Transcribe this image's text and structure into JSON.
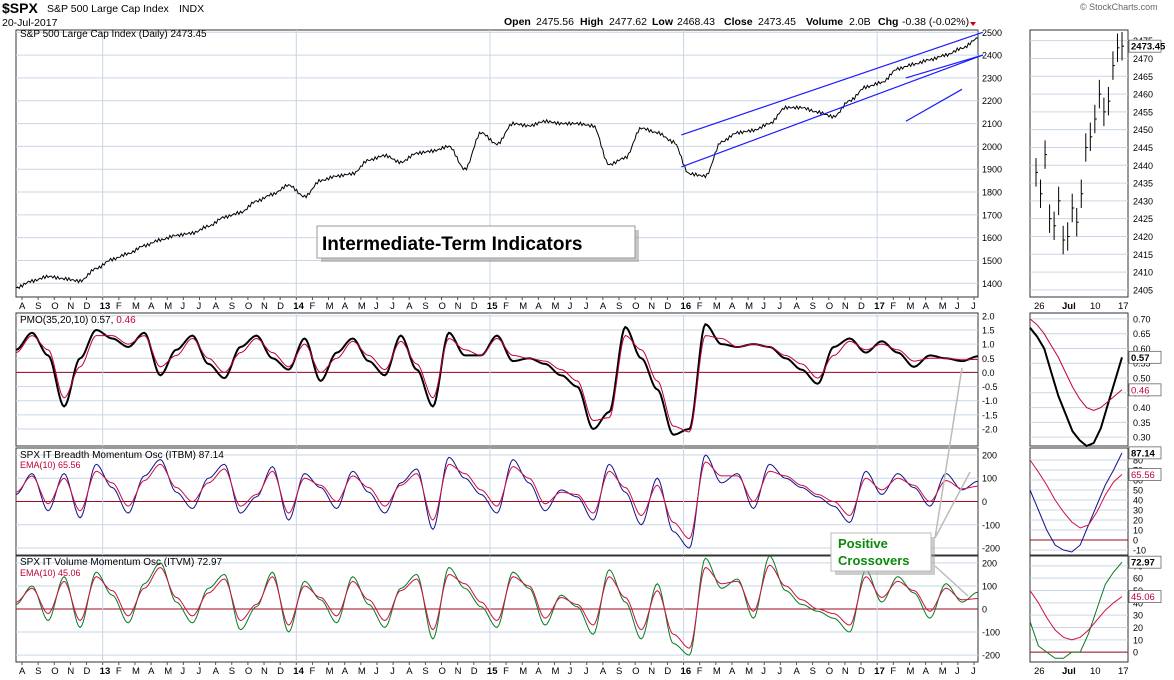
{
  "header": {
    "symbol": "$SPX",
    "name": "S&P 500 Large Cap Index",
    "exchange": "INDX",
    "date": "20-Jul-2017",
    "brand": "© StockCharts.com",
    "ohlc": {
      "open_label": "Open",
      "open": "2475.56",
      "high_label": "High",
      "high": "2477.62",
      "low_label": "Low",
      "low": "2468.43",
      "close_label": "Close",
      "close": "2473.45",
      "volume_label": "Volume",
      "volume": "2.0B",
      "chg_label": "Chg",
      "chg": "-0.38 (-0.02%)"
    }
  },
  "annotations": {
    "title_box": "Intermediate-Term Indicators",
    "crossover_line1": "Positive",
    "crossover_line2": "Crossovers"
  },
  "colors": {
    "price": "#000000",
    "channel": "#1a1aff",
    "pmo": "#000000",
    "pmo_signal": "#c0003a",
    "itbm": "#13138a",
    "itvm": "#0a7a1e",
    "ema": "#cc1144",
    "zero_line": "#9b0a1e",
    "grid": "#c9d6e6",
    "crossover_text": "#0a8a0a"
  },
  "chart_data": [
    {
      "type": "line",
      "panel": "price",
      "label": "S&P 500 Large Cap Index (Daily) 2473.45",
      "last_value": "2473.45",
      "yticks": [
        1400,
        1500,
        1600,
        1700,
        1800,
        1900,
        2000,
        2100,
        2200,
        2300,
        2400,
        2500
      ],
      "ylim": [
        1340,
        2510
      ],
      "x_tick_labels": [
        "A",
        "S",
        "O",
        "N",
        "D",
        "13",
        "F",
        "M",
        "A",
        "M",
        "J",
        "J",
        "A",
        "S",
        "O",
        "N",
        "D",
        "14",
        "F",
        "M",
        "A",
        "M",
        "J",
        "J",
        "A",
        "S",
        "O",
        "N",
        "D",
        "15",
        "F",
        "M",
        "A",
        "M",
        "J",
        "J",
        "A",
        "S",
        "O",
        "N",
        "D",
        "16",
        "F",
        "M",
        "A",
        "M",
        "J",
        "J",
        "A",
        "S",
        "O",
        "N",
        "D",
        "17",
        "F",
        "M",
        "A",
        "M",
        "J",
        "J"
      ],
      "year_labels": [
        "13",
        "14",
        "15",
        "16",
        "17"
      ],
      "series": [
        {
          "values": [
            1380,
            1410,
            1430,
            1420,
            1410,
            1465,
            1505,
            1530,
            1565,
            1590,
            1610,
            1620,
            1650,
            1690,
            1710,
            1760,
            1790,
            1830,
            1780,
            1850,
            1870,
            1880,
            1940,
            1960,
            1930,
            1970,
            1980,
            2000,
            1900,
            2060,
            2010,
            2100,
            2090,
            2110,
            2100,
            2100,
            2090,
            1920,
            1950,
            2080,
            2060,
            2020,
            1880,
            1870,
            2020,
            2060,
            2070,
            2100,
            2170,
            2170,
            2150,
            2130,
            2200,
            2260,
            2280,
            2340,
            2360,
            2380,
            2400,
            2430,
            2473
          ]
        }
      ],
      "channel_lines": [
        {
          "from": [
            "Feb-2016",
            2050
          ],
          "to": [
            "Jul-2017",
            2500
          ]
        },
        {
          "from": [
            "Feb-2016",
            1910
          ],
          "to": [
            "Jul-2017",
            2400
          ]
        },
        {
          "from": [
            "Mar-2017",
            2300
          ],
          "to": [
            "Jul-2017",
            2400
          ]
        },
        {
          "from": [
            "Mar-2017",
            2110
          ],
          "to": [
            "Jun-2017",
            2250
          ]
        }
      ]
    },
    {
      "type": "line",
      "panel": "price-inset",
      "yticks": [
        2405,
        2410,
        2415,
        2420,
        2425,
        2430,
        2435,
        2440,
        2445,
        2450,
        2455,
        2460,
        2465,
        2470,
        2475
      ],
      "ylim": [
        2403,
        2478
      ],
      "last_value": "2473.45",
      "x_tick_labels": [
        "26",
        "Jul",
        "10",
        "17"
      ],
      "series": [
        {
          "values": [
            2438,
            2432,
            2443,
            2425,
            2423,
            2430,
            2419,
            2420,
            2428,
            2424,
            2432,
            2445,
            2448,
            2453,
            2460,
            2455,
            2458,
            2468,
            2473,
            2473.45
          ]
        }
      ]
    },
    {
      "type": "line",
      "panel": "pmo",
      "label": "PMO(35,20,10) 0.57, 0.46",
      "title": "PMO(35,20,10)",
      "pmo_value": "0.57",
      "signal_value": "0.46",
      "yticks": [
        -2.0,
        -1.5,
        -1.0,
        -0.5,
        0.0,
        0.5,
        1.0,
        1.5,
        2.0
      ],
      "ylim": [
        -2.6,
        2.1
      ],
      "series": [
        {
          "values": [
            0.8,
            1.4,
            0.6,
            -1.2,
            0.5,
            1.5,
            1.2,
            0.9,
            1.4,
            -0.1,
            0.8,
            1.3,
            0.3,
            -0.2,
            0.9,
            1.3,
            0.5,
            0.1,
            1.2,
            -0.3,
            0.7,
            1.2,
            0.4,
            -0.1,
            1.3,
            0.1,
            -1.2,
            1.4,
            0.6,
            0.6,
            1.3,
            0.4,
            0.5,
            0.3,
            -0.1,
            -0.5,
            -2.0,
            -1.4,
            1.6,
            0.5,
            -0.6,
            -2.2,
            -2.0,
            1.7,
            1.0,
            0.9,
            1.0,
            0.9,
            0.5,
            0.1,
            -0.4,
            0.9,
            1.2,
            0.7,
            1.1,
            0.7,
            0.2,
            0.6,
            0.5,
            0.4,
            0.57
          ]
        },
        {
          "values": [
            0.7,
            1.3,
            0.8,
            -0.9,
            0.2,
            1.3,
            1.3,
            1.0,
            1.3,
            0.2,
            0.6,
            1.2,
            0.5,
            0.0,
            0.7,
            1.2,
            0.7,
            0.2,
            1.0,
            0.0,
            0.5,
            1.1,
            0.6,
            0.1,
            1.1,
            0.3,
            -0.9,
            1.2,
            0.8,
            0.6,
            1.2,
            0.6,
            0.5,
            0.4,
            0.1,
            -0.3,
            -1.7,
            -1.6,
            1.3,
            0.8,
            -0.3,
            -1.9,
            -2.1,
            1.3,
            1.2,
            0.9,
            1.0,
            0.9,
            0.6,
            0.3,
            -0.2,
            0.6,
            1.1,
            0.8,
            1.0,
            0.8,
            0.4,
            0.5,
            0.5,
            0.45,
            0.46
          ]
        }
      ]
    },
    {
      "type": "line",
      "panel": "pmo-inset",
      "yticks": [
        0.3,
        0.35,
        0.4,
        0.45,
        0.5,
        0.55,
        0.6,
        0.65,
        0.7
      ],
      "ylim": [
        0.27,
        0.72
      ],
      "series": [
        {
          "values": [
            0.67,
            0.64,
            0.6,
            0.52,
            0.44,
            0.38,
            0.32,
            0.29,
            0.27,
            0.28,
            0.33,
            0.41,
            0.49,
            0.57
          ]
        },
        {
          "values": [
            0.7,
            0.68,
            0.65,
            0.61,
            0.57,
            0.52,
            0.47,
            0.43,
            0.4,
            0.39,
            0.4,
            0.42,
            0.44,
            0.46
          ]
        }
      ],
      "value_labels": [
        "0.57",
        "0.46"
      ]
    },
    {
      "type": "line",
      "panel": "itbm",
      "label": "SPX IT Breadth Momentum Osc (ITBM) 87.14",
      "ema_label": "EMA(10) 65.56",
      "itbm_value": "87.14",
      "ema_value": "65.56",
      "yticks": [
        -200,
        -100,
        0,
        100,
        200
      ],
      "ylim": [
        -230,
        230
      ],
      "series": [
        {
          "values": [
            30,
            120,
            -40,
            120,
            -70,
            160,
            60,
            -50,
            110,
            180,
            40,
            -30,
            100,
            160,
            -50,
            20,
            150,
            -80,
            120,
            60,
            -30,
            130,
            40,
            -50,
            80,
            140,
            -120,
            190,
            100,
            30,
            -50,
            180,
            80,
            -40,
            50,
            20,
            -80,
            160,
            40,
            -100,
            100,
            -130,
            -200,
            200,
            80,
            120,
            -30,
            160,
            100,
            60,
            20,
            -20,
            -90,
            130,
            30,
            120,
            60,
            -20,
            120,
            50,
            87.14
          ]
        },
        {
          "values": [
            40,
            110,
            -10,
            100,
            -40,
            130,
            80,
            -20,
            90,
            160,
            60,
            0,
            80,
            140,
            -20,
            30,
            130,
            -50,
            100,
            70,
            0,
            110,
            60,
            -20,
            70,
            120,
            -80,
            160,
            120,
            50,
            -20,
            150,
            100,
            -10,
            40,
            30,
            -50,
            130,
            60,
            -60,
            70,
            -90,
            -160,
            170,
            110,
            110,
            0,
            130,
            110,
            70,
            30,
            0,
            -60,
            100,
            50,
            100,
            70,
            0,
            90,
            55,
            65.56
          ]
        }
      ]
    },
    {
      "type": "line",
      "panel": "itbm-inset",
      "yticks": [
        -10,
        0,
        10,
        20,
        30,
        40,
        50,
        60,
        70,
        80
      ],
      "ylim": [
        -15,
        92
      ],
      "series": [
        {
          "values": [
            50,
            30,
            10,
            -5,
            -10,
            -12,
            -5,
            15,
            35,
            55,
            70,
            87.14
          ]
        },
        {
          "values": [
            80,
            68,
            55,
            40,
            28,
            18,
            12,
            15,
            28,
            45,
            58,
            65.56
          ]
        }
      ],
      "value_labels": [
        "87.14",
        "65.56"
      ]
    },
    {
      "type": "line",
      "panel": "itvm",
      "label": "SPX IT Volume Momentum Osc (ITVM) 72.97",
      "ema_label": "EMA(10) 45.06",
      "itvm_value": "72.97",
      "ema_value": "45.06",
      "yticks": [
        -200,
        -100,
        0,
        100,
        200
      ],
      "ylim": [
        -230,
        230
      ],
      "series": [
        {
          "values": [
            20,
            100,
            -50,
            140,
            -80,
            160,
            60,
            -60,
            110,
            200,
            30,
            -60,
            90,
            150,
            -90,
            10,
            160,
            -100,
            120,
            40,
            -60,
            140,
            20,
            -80,
            90,
            150,
            -130,
            180,
            90,
            10,
            -80,
            160,
            90,
            -70,
            60,
            10,
            -110,
            170,
            30,
            -130,
            110,
            -150,
            -200,
            220,
            90,
            130,
            -40,
            230,
            80,
            20,
            -10,
            -40,
            -100,
            170,
            30,
            140,
            70,
            -40,
            110,
            30,
            72.97
          ]
        },
        {
          "values": [
            30,
            90,
            -20,
            120,
            -50,
            140,
            80,
            -30,
            90,
            180,
            50,
            -30,
            70,
            130,
            -50,
            20,
            140,
            -70,
            100,
            50,
            -30,
            120,
            40,
            -50,
            80,
            130,
            -90,
            150,
            110,
            30,
            -50,
            140,
            100,
            -40,
            50,
            20,
            -70,
            140,
            50,
            -90,
            80,
            -110,
            -170,
            180,
            110,
            120,
            -10,
            190,
            100,
            40,
            0,
            -20,
            -70,
            140,
            50,
            120,
            80,
            -10,
            90,
            40,
            45.06
          ]
        }
      ]
    },
    {
      "type": "line",
      "panel": "itvm-inset",
      "yticks": [
        0,
        10,
        20,
        30,
        40,
        50,
        60,
        70
      ],
      "ylim": [
        -8,
        78
      ],
      "series": [
        {
          "values": [
            25,
            5,
            0,
            -5,
            -5,
            0,
            0,
            15,
            35,
            55,
            65,
            72.97
          ]
        },
        {
          "values": [
            50,
            40,
            28,
            18,
            12,
            10,
            12,
            18,
            26,
            34,
            40,
            45.06
          ]
        }
      ],
      "value_labels": [
        "72.97",
        "45.06"
      ]
    }
  ]
}
